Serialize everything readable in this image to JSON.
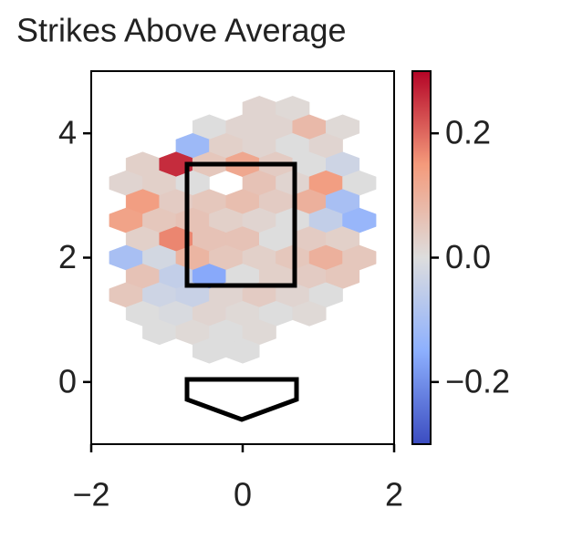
{
  "chart_data": {
    "type": "hexbin",
    "title": "Strikes Above Average",
    "x": [
      0.22,
      0.66,
      -0.44,
      0,
      0.44,
      0.88,
      1.32,
      -0.66,
      -0.22,
      0.22,
      0.66,
      1.1,
      -1.32,
      -0.88,
      -0.44,
      0,
      0.44,
      0.88,
      1.32,
      -1.54,
      -1.1,
      -0.66,
      0.22,
      0.66,
      1.1,
      1.54,
      -1.32,
      -0.88,
      -0.44,
      0,
      0.44,
      0.88,
      1.32,
      -1.54,
      -1.1,
      -0.66,
      -0.22,
      0.22,
      0.66,
      1.1,
      1.54,
      -1.32,
      -0.88,
      -0.44,
      0,
      0.44,
      0.88,
      1.32,
      -1.54,
      -1.1,
      -0.66,
      -0.22,
      0.22,
      0.66,
      1.1,
      1.54,
      -1.32,
      -0.88,
      -0.44,
      0,
      0.44,
      0.88,
      1.32,
      -1.54,
      -1.1,
      -0.66,
      -0.22,
      0.22,
      0.66,
      1.1,
      -1.32,
      -0.88,
      -0.44,
      0,
      0.44,
      0.88,
      -1.1,
      -0.66,
      -0.22,
      0.22,
      -0.44,
      0
    ],
    "y": [
      4.4,
      4.4,
      4.1,
      4.1,
      4.1,
      4.1,
      4.1,
      3.8,
      3.8,
      3.8,
      3.8,
      3.8,
      3.5,
      3.5,
      3.5,
      3.5,
      3.5,
      3.5,
      3.5,
      3.2,
      3.2,
      3.2,
      3.2,
      3.2,
      3.2,
      3.2,
      2.9,
      2.9,
      2.9,
      2.9,
      2.9,
      2.9,
      2.9,
      2.6,
      2.6,
      2.6,
      2.6,
      2.6,
      2.6,
      2.6,
      2.6,
      2.3,
      2.3,
      2.3,
      2.3,
      2.3,
      2.3,
      2.3,
      2.0,
      2.0,
      2.0,
      2.0,
      2.0,
      2.0,
      2.0,
      2.0,
      1.7,
      1.7,
      1.7,
      1.7,
      1.7,
      1.7,
      1.7,
      1.4,
      1.4,
      1.4,
      1.4,
      1.4,
      1.4,
      1.4,
      1.1,
      1.1,
      1.1,
      1.1,
      1.1,
      1.1,
      0.8,
      0.8,
      0.8,
      0.8,
      0.5,
      0.5
    ],
    "values": [
      0.02,
      0.01,
      0.0,
      0.02,
      0.02,
      0.08,
      0.01,
      -0.12,
      0.03,
      0.02,
      0.0,
      0.02,
      0.03,
      0.26,
      0.05,
      0.12,
      0.04,
      0.0,
      -0.03,
      0.02,
      0.03,
      0.0,
      0.06,
      0.02,
      0.14,
      0.0,
      0.14,
      0.04,
      0.05,
      0.07,
      0.04,
      0.1,
      -0.1,
      0.13,
      0.05,
      0.06,
      0.03,
      0.02,
      0.0,
      -0.05,
      -0.13,
      0.03,
      0.17,
      0.06,
      0.06,
      0.0,
      0.04,
      0.03,
      -0.1,
      -0.02,
      0.09,
      0.05,
      0.03,
      0.05,
      0.1,
      0.05,
      0.06,
      -0.05,
      -0.16,
      0.0,
      0.03,
      0.04,
      0.05,
      0.05,
      -0.03,
      -0.04,
      0.02,
      0.04,
      0.02,
      0.0,
      0.0,
      -0.01,
      0.02,
      0.01,
      0.0,
      0.01,
      0.0,
      0.01,
      0.0,
      0.01,
      0.0,
      0.0
    ],
    "xlim": [
      -2,
      2
    ],
    "xticks": [
      {
        "value": -2,
        "label": "−2"
      },
      0,
      2
    ],
    "ylim": [
      -1,
      5
    ],
    "yticks": [
      0,
      2,
      4
    ],
    "colormap": "coolwarm",
    "clim": [
      -0.3,
      0.3
    ],
    "cticks": [
      {
        "value": -0.2,
        "label": "−0.2"
      },
      {
        "value": 0,
        "label": "0.0"
      },
      0.2
    ]
  }
}
